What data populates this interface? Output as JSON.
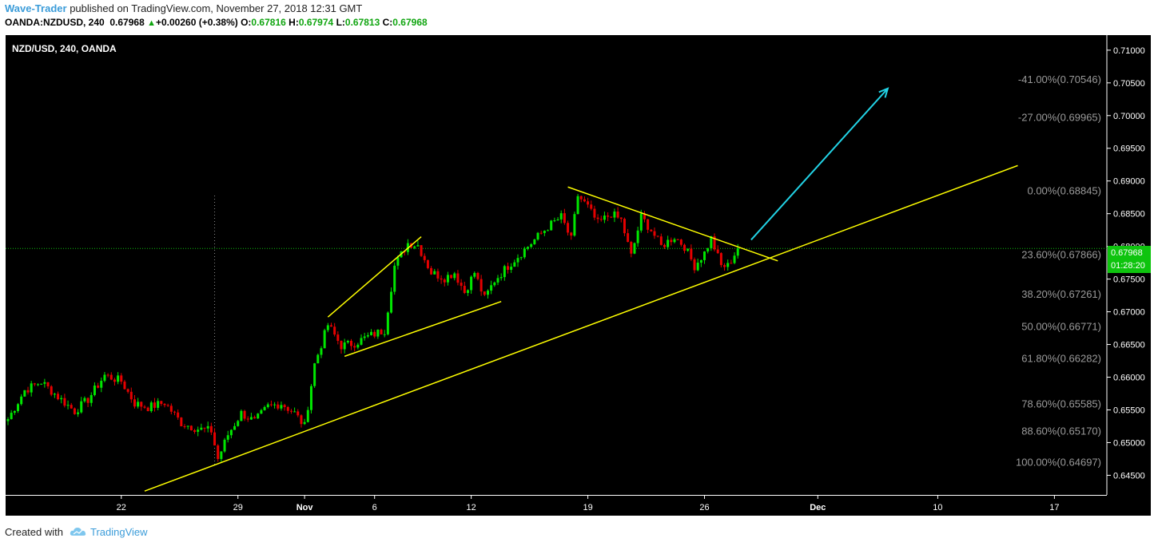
{
  "header": {
    "author": "Wave-Trader",
    "published_text": "published on TradingView.com, November 27, 2018 12:31 GMT",
    "symbol_line": "OANDA:NZDUSD, 240",
    "last": "0.67968",
    "change": "+0.00260 (+0.38%)",
    "o_label": "O:",
    "o_value": "0.67816",
    "h_label": "H:",
    "h_value": "0.67974",
    "l_label": "L:",
    "l_value": "0.67813",
    "c_label": "C:",
    "c_value": "0.67968"
  },
  "footer": {
    "created_with": "Created with",
    "brand": "TradingView"
  },
  "colors": {
    "background": "#000000",
    "up": "#00e600",
    "down": "#e60000",
    "trendline": "#ffff00",
    "arrow": "#22d3e6",
    "price_line": "#11c011",
    "fib_text": "#9a9a9a"
  },
  "chart_data": {
    "type": "candlestick",
    "title": "NZD/USD, 240, OANDA",
    "current_price_label": "0.67968",
    "countdown_label": "01:28:20",
    "y_ticks": [
      "0.71000",
      "0.70500",
      "0.70000",
      "0.69500",
      "0.69000",
      "0.68500",
      "0.68000",
      "0.67500",
      "0.67000",
      "0.66500",
      "0.66000",
      "0.65500",
      "0.65000",
      "0.64500"
    ],
    "ylim": [
      0.642,
      0.7123
    ],
    "x_labels": [
      {
        "label": "22",
        "bar": 34
      },
      {
        "label": "29",
        "bar": 69
      },
      {
        "label": "Nov",
        "bar": 89
      },
      {
        "label": "6",
        "bar": 110
      },
      {
        "label": "12",
        "bar": 139
      },
      {
        "label": "19",
        "bar": 174
      },
      {
        "label": "26",
        "bar": 209
      },
      {
        "label": "Dec",
        "bar": 243
      },
      {
        "label": "10",
        "bar": 279
      },
      {
        "label": "17",
        "bar": 314
      }
    ],
    "fib_levels": [
      {
        "label": "-41.00%(0.70546)",
        "price": 0.70546
      },
      {
        "label": "-27.00%(0.69965)",
        "price": 0.69965
      },
      {
        "label": "0.00%(0.68845)",
        "price": 0.68845
      },
      {
        "label": "23.60%(0.67866)",
        "price": 0.67866
      },
      {
        "label": "38.20%(0.67261)",
        "price": 0.67261
      },
      {
        "label": "50.00%(0.66771)",
        "price": 0.66771
      },
      {
        "label": "61.80%(0.66282)",
        "price": 0.66282
      },
      {
        "label": "78.60%(0.65585)",
        "price": 0.65585
      },
      {
        "label": "88.60%(0.65170)",
        "price": 0.6517
      },
      {
        "label": "100.00%(0.64697)",
        "price": 0.64697
      }
    ],
    "price_line": 0.67968,
    "crosshair_bar": 62,
    "trendlines": [
      {
        "from": [
          41,
          0.64259
        ],
        "to": [
          303,
          0.69236
        ]
      },
      {
        "from": [
          96,
          0.6692
        ],
        "to": [
          124,
          0.68147
        ]
      },
      {
        "from": [
          101,
          0.66319
        ],
        "to": [
          148,
          0.67157
        ]
      },
      {
        "from": [
          168,
          0.68908
        ],
        "to": [
          231,
          0.67778
        ]
      }
    ],
    "arrow": {
      "from": [
        223,
        0.681
      ],
      "to": [
        264,
        0.70414
      ]
    },
    "anchors": [
      {
        "bar": 0,
        "price": 0.6536
      },
      {
        "bar": 5,
        "price": 0.658
      },
      {
        "bar": 10,
        "price": 0.6593
      },
      {
        "bar": 15,
        "price": 0.657
      },
      {
        "bar": 20,
        "price": 0.6548
      },
      {
        "bar": 24,
        "price": 0.6566
      },
      {
        "bar": 29,
        "price": 0.6603
      },
      {
        "bar": 34,
        "price": 0.6594
      },
      {
        "bar": 38,
        "price": 0.656
      },
      {
        "bar": 42,
        "price": 0.6554
      },
      {
        "bar": 47,
        "price": 0.6561
      },
      {
        "bar": 52,
        "price": 0.653
      },
      {
        "bar": 57,
        "price": 0.6521
      },
      {
        "bar": 61,
        "price": 0.6518
      },
      {
        "bar": 63,
        "price": 0.6475
      },
      {
        "bar": 66,
        "price": 0.6512
      },
      {
        "bar": 70,
        "price": 0.6545
      },
      {
        "bar": 74,
        "price": 0.6532
      },
      {
        "bar": 78,
        "price": 0.6555
      },
      {
        "bar": 82,
        "price": 0.656
      },
      {
        "bar": 86,
        "price": 0.6545
      },
      {
        "bar": 89,
        "price": 0.6525
      },
      {
        "bar": 92,
        "price": 0.662
      },
      {
        "bar": 96,
        "price": 0.668
      },
      {
        "bar": 100,
        "price": 0.6648
      },
      {
        "bar": 104,
        "price": 0.6652
      },
      {
        "bar": 108,
        "price": 0.6662
      },
      {
        "bar": 113,
        "price": 0.6672
      },
      {
        "bar": 116,
        "price": 0.677
      },
      {
        "bar": 120,
        "price": 0.6805
      },
      {
        "bar": 123,
        "price": 0.6802
      },
      {
        "bar": 127,
        "price": 0.676
      },
      {
        "bar": 131,
        "price": 0.6752
      },
      {
        "bar": 134,
        "price": 0.676
      },
      {
        "bar": 137,
        "price": 0.673
      },
      {
        "bar": 140,
        "price": 0.676
      },
      {
        "bar": 143,
        "price": 0.672
      },
      {
        "bar": 146,
        "price": 0.6748
      },
      {
        "bar": 150,
        "price": 0.677
      },
      {
        "bar": 154,
        "price": 0.679
      },
      {
        "bar": 158,
        "price": 0.681
      },
      {
        "bar": 162,
        "price": 0.683
      },
      {
        "bar": 166,
        "price": 0.6845
      },
      {
        "bar": 169,
        "price": 0.681
      },
      {
        "bar": 171,
        "price": 0.6878
      },
      {
        "bar": 174,
        "price": 0.686
      },
      {
        "bar": 177,
        "price": 0.6835
      },
      {
        "bar": 181,
        "price": 0.685
      },
      {
        "bar": 184,
        "price": 0.684
      },
      {
        "bar": 187,
        "price": 0.6785
      },
      {
        "bar": 190,
        "price": 0.6845
      },
      {
        "bar": 193,
        "price": 0.6825
      },
      {
        "bar": 196,
        "price": 0.68
      },
      {
        "bar": 200,
        "price": 0.6815
      },
      {
        "bar": 203,
        "price": 0.68
      },
      {
        "bar": 206,
        "price": 0.677
      },
      {
        "bar": 209,
        "price": 0.679
      },
      {
        "bar": 211,
        "price": 0.6812
      },
      {
        "bar": 214,
        "price": 0.677
      },
      {
        "bar": 216,
        "price": 0.677
      },
      {
        "bar": 219,
        "price": 0.6797
      }
    ]
  }
}
